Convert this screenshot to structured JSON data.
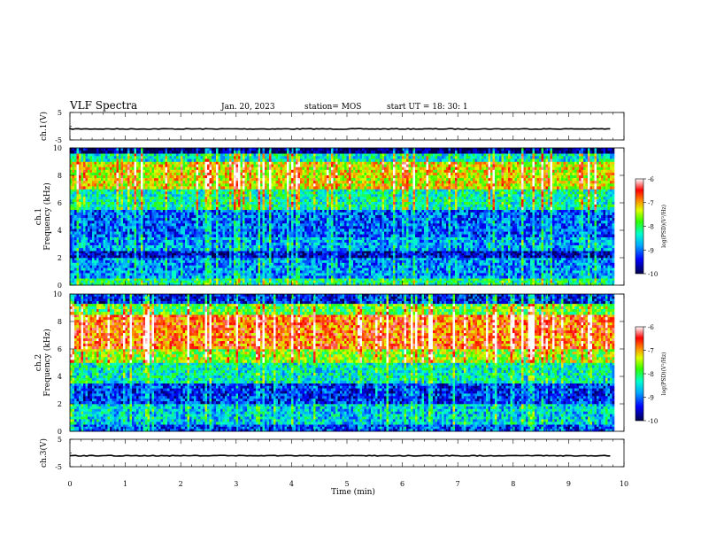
{
  "header": {
    "title": "VLF Spectra",
    "date": "Jan. 20, 2023",
    "station": "station= MOS",
    "start": "start  UT =   18: 30: 1"
  },
  "chart_data": [
    {
      "name": "ch1-waveform",
      "type": "line",
      "ylabel": "ch.1(V)",
      "ylim": [
        -5,
        5
      ],
      "yticks": [
        5,
        -5
      ],
      "baseline_value": -1,
      "x_range_min": [
        0,
        9.8
      ]
    },
    {
      "name": "ch1-spectrogram",
      "type": "heatmap",
      "ylabel": "ch.1",
      "ylabel2": "Frequency (kHz)",
      "ylim": [
        0,
        10
      ],
      "yticks": [
        0,
        2,
        4,
        6,
        8,
        10
      ],
      "x_range_min": [
        0,
        9.8
      ],
      "colorbar": {
        "label": "log(PSD)(V²/Hz)",
        "ticks": [
          -6,
          -7,
          -8,
          -9,
          -10
        ],
        "range": [
          -10,
          -6
        ]
      },
      "bands": [
        {
          "f_low": 0,
          "f_high": 0.5,
          "level": -8.2
        },
        {
          "f_low": 0.5,
          "f_high": 2.0,
          "level": -8.9
        },
        {
          "f_low": 2.0,
          "f_high": 2.5,
          "level": -9.6
        },
        {
          "f_low": 2.5,
          "f_high": 3.5,
          "level": -8.8
        },
        {
          "f_low": 3.5,
          "f_high": 5.5,
          "level": -9.1
        },
        {
          "f_low": 5.5,
          "f_high": 7.0,
          "level": -8.3
        },
        {
          "f_low": 7.0,
          "f_high": 9.0,
          "level": -7.3
        },
        {
          "f_low": 9.0,
          "f_high": 9.6,
          "level": -8.4
        },
        {
          "f_low": 9.6,
          "f_high": 10,
          "level": -10
        }
      ]
    },
    {
      "name": "ch2-spectrogram",
      "type": "heatmap",
      "ylabel": "ch.2",
      "ylabel2": "Frequency (kHz)",
      "ylim": [
        0,
        10
      ],
      "yticks": [
        0,
        2,
        4,
        6,
        8,
        10
      ],
      "x_range_min": [
        0,
        9.8
      ],
      "colorbar": {
        "label": "log(PSD)(V²/Hz)",
        "ticks": [
          -6,
          -7,
          -8,
          -9,
          -10
        ],
        "range": [
          -10,
          -6
        ]
      },
      "bands": [
        {
          "f_low": 0,
          "f_high": 0.5,
          "level": -9.2
        },
        {
          "f_low": 0.5,
          "f_high": 2.0,
          "level": -8.6
        },
        {
          "f_low": 2.0,
          "f_high": 3.5,
          "level": -9.3
        },
        {
          "f_low": 3.5,
          "f_high": 5.0,
          "level": -8.4
        },
        {
          "f_low": 5.0,
          "f_high": 6.0,
          "level": -7.6
        },
        {
          "f_low": 6.0,
          "f_high": 8.5,
          "level": -6.8
        },
        {
          "f_low": 8.5,
          "f_high": 9.3,
          "level": -7.8
        },
        {
          "f_low": 9.3,
          "f_high": 10,
          "level": -9.4
        }
      ]
    },
    {
      "name": "ch3-waveform",
      "type": "line",
      "ylabel": "ch.3(V)",
      "ylim": [
        -5,
        5
      ],
      "yticks": [
        5,
        -5
      ],
      "baseline_value": -1,
      "x_range_min": [
        0,
        9.8
      ]
    }
  ],
  "xaxis": {
    "label": "Time  (min)",
    "ticks": [
      0,
      1,
      2,
      3,
      4,
      5,
      6,
      7,
      8,
      9,
      10
    ],
    "range": [
      0,
      10
    ]
  },
  "colors": {
    "colormap": [
      "#00008b",
      "#0000ff",
      "#00a0ff",
      "#00ffff",
      "#00ff60",
      "#80ff00",
      "#ffff00",
      "#ff8000",
      "#ff0000",
      "#ffffff"
    ]
  }
}
